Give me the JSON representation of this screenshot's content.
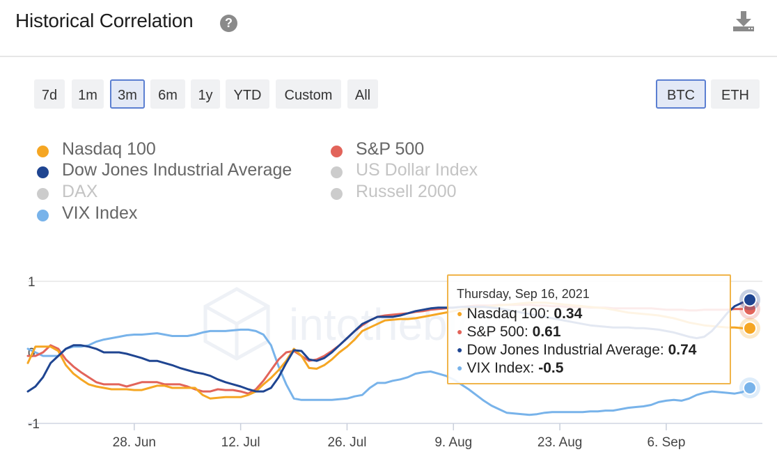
{
  "header": {
    "title": "Historical Correlation",
    "help_icon": "?"
  },
  "ranges": [
    {
      "label": "7d",
      "active": false
    },
    {
      "label": "1m",
      "active": false
    },
    {
      "label": "3m",
      "active": true
    },
    {
      "label": "6m",
      "active": false
    },
    {
      "label": "1y",
      "active": false
    },
    {
      "label": "YTD",
      "active": false
    },
    {
      "label": "Custom",
      "active": false
    },
    {
      "label": "All",
      "active": false
    }
  ],
  "assets": [
    {
      "label": "BTC",
      "active": true
    },
    {
      "label": "ETH",
      "active": false
    }
  ],
  "legend": [
    {
      "label": "Nasdaq 100",
      "color": "#f5a623",
      "enabled": true
    },
    {
      "label": "S&P 500",
      "color": "#e2645a",
      "enabled": true
    },
    {
      "label": "Dow Jones Industrial Average",
      "color": "#1f4591",
      "enabled": true
    },
    {
      "label": "US Dollar Index",
      "color": "#cccccc",
      "enabled": false
    },
    {
      "label": "DAX",
      "color": "#cccccc",
      "enabled": false
    },
    {
      "label": "Russell 2000",
      "color": "#cccccc",
      "enabled": false
    },
    {
      "label": "VIX Index",
      "color": "#78b3ea",
      "enabled": true
    }
  ],
  "tooltip": {
    "date": "Thursday, Sep 16, 2021",
    "rows": [
      {
        "label": "Nasdaq 100",
        "value": "0.34",
        "color": "#f5a623"
      },
      {
        "label": "S&P 500",
        "value": "0.61",
        "color": "#e2645a"
      },
      {
        "label": "Dow Jones Industrial Average",
        "value": "0.74",
        "color": "#1f4591"
      },
      {
        "label": "VIX Index",
        "value": "-0.5",
        "color": "#78b3ea"
      }
    ]
  },
  "chart_data": {
    "type": "line",
    "title": "Historical Correlation",
    "xlabel": "",
    "ylabel": "",
    "ylim": [
      -1,
      1
    ],
    "y_ticks": [
      "1",
      "0",
      "-1"
    ],
    "x_ticks": [
      "28. Jun",
      "12. Jul",
      "26. Jul",
      "9. Aug",
      "23. Aug",
      "6. Sep"
    ],
    "watermark": "intotheblock",
    "x_start_day": 0,
    "x_end_day": 95,
    "x_tick_days": [
      14,
      28,
      42,
      56,
      70,
      84
    ],
    "series": [
      {
        "name": "Nasdaq 100",
        "color": "#f5a623",
        "x": [
          0,
          1,
          2,
          3,
          4,
          5,
          6,
          7,
          8,
          9,
          10,
          11,
          12,
          13,
          14,
          15,
          16,
          17,
          18,
          19,
          20,
          21,
          22,
          23,
          24,
          25,
          26,
          27,
          28,
          29,
          30,
          31,
          32,
          33,
          34,
          35,
          36,
          37,
          38,
          39,
          40,
          41,
          42,
          43,
          44,
          45,
          46,
          47,
          48,
          49,
          50,
          51,
          52,
          53,
          54,
          55,
          56,
          57,
          58,
          59,
          60,
          61,
          62,
          63,
          64,
          65,
          66,
          67,
          68,
          69,
          70,
          71,
          72,
          73,
          74,
          75,
          76,
          77,
          78,
          79,
          80,
          81,
          82,
          83,
          84,
          85,
          86,
          87,
          88,
          89,
          90,
          91,
          92,
          93,
          94,
          95
        ],
        "y": [
          -0.15,
          0.08,
          0.08,
          0.08,
          0.02,
          -0.18,
          -0.3,
          -0.38,
          -0.45,
          -0.48,
          -0.5,
          -0.52,
          -0.52,
          -0.52,
          -0.53,
          -0.53,
          -0.5,
          -0.47,
          -0.47,
          -0.5,
          -0.5,
          -0.5,
          -0.5,
          -0.6,
          -0.65,
          -0.64,
          -0.63,
          -0.63,
          -0.63,
          -0.6,
          -0.55,
          -0.45,
          -0.36,
          -0.25,
          -0.12,
          0.05,
          -0.05,
          -0.22,
          -0.23,
          -0.18,
          -0.1,
          0.0,
          0.08,
          0.18,
          0.3,
          0.35,
          0.4,
          0.45,
          0.46,
          0.47,
          0.47,
          0.48,
          0.5,
          0.52,
          0.54,
          0.56,
          0.58,
          0.6,
          0.62,
          0.63,
          0.64,
          0.65,
          0.66,
          0.67,
          0.68,
          0.69,
          0.7,
          0.7,
          0.7,
          0.69,
          0.68,
          0.67,
          0.66,
          0.65,
          0.64,
          0.63,
          0.62,
          0.6,
          0.58,
          0.56,
          0.55,
          0.54,
          0.53,
          0.52,
          0.5,
          0.48,
          0.45,
          0.42,
          0.4,
          0.38,
          0.37,
          0.36,
          0.35,
          0.35,
          0.34,
          0.34
        ]
      },
      {
        "name": "S&P 500",
        "color": "#e2645a",
        "x": [
          0,
          1,
          2,
          3,
          4,
          5,
          6,
          7,
          8,
          9,
          10,
          11,
          12,
          13,
          14,
          15,
          16,
          17,
          18,
          19,
          20,
          21,
          22,
          23,
          24,
          25,
          26,
          27,
          28,
          29,
          30,
          31,
          32,
          33,
          34,
          35,
          36,
          37,
          38,
          39,
          40,
          41,
          42,
          43,
          44,
          45,
          46,
          47,
          48,
          49,
          50,
          51,
          52,
          53,
          54,
          55,
          56,
          57,
          58,
          59,
          60,
          61,
          62,
          63,
          64,
          65,
          66,
          67,
          68,
          69,
          70,
          71,
          72,
          73,
          74,
          75,
          76,
          77,
          78,
          79,
          80,
          81,
          82,
          83,
          84,
          85,
          86,
          87,
          88,
          89,
          90,
          91,
          92,
          93,
          94,
          95
        ],
        "y": [
          -0.05,
          -0.05,
          0.0,
          0.1,
          0.05,
          -0.1,
          -0.2,
          -0.28,
          -0.35,
          -0.42,
          -0.45,
          -0.45,
          -0.45,
          -0.48,
          -0.45,
          -0.42,
          -0.42,
          -0.42,
          -0.45,
          -0.45,
          -0.45,
          -0.48,
          -0.52,
          -0.55,
          -0.55,
          -0.52,
          -0.53,
          -0.53,
          -0.55,
          -0.58,
          -0.52,
          -0.4,
          -0.25,
          -0.1,
          0.0,
          0.02,
          -0.05,
          -0.12,
          -0.1,
          -0.05,
          0.02,
          0.1,
          0.2,
          0.3,
          0.38,
          0.45,
          0.5,
          0.52,
          0.53,
          0.54,
          0.55,
          0.57,
          0.58,
          0.6,
          0.61,
          0.62,
          0.63,
          0.64,
          0.65,
          0.66,
          0.66,
          0.66,
          0.67,
          0.67,
          0.67,
          0.67,
          0.67,
          0.66,
          0.66,
          0.65,
          0.65,
          0.64,
          0.64,
          0.64,
          0.63,
          0.63,
          0.63,
          0.62,
          0.62,
          0.62,
          0.62,
          0.62,
          0.62,
          0.61,
          0.6,
          0.6,
          0.6,
          0.59,
          0.59,
          0.6,
          0.6,
          0.6,
          0.6,
          0.61,
          0.61,
          0.61
        ]
      },
      {
        "name": "Dow Jones Industrial Average",
        "color": "#1f4591",
        "x": [
          0,
          1,
          2,
          3,
          4,
          5,
          6,
          7,
          8,
          9,
          10,
          11,
          12,
          13,
          14,
          15,
          16,
          17,
          18,
          19,
          20,
          21,
          22,
          23,
          24,
          25,
          26,
          27,
          28,
          29,
          30,
          31,
          32,
          33,
          34,
          35,
          36,
          37,
          38,
          39,
          40,
          41,
          42,
          43,
          44,
          45,
          46,
          47,
          48,
          49,
          50,
          51,
          52,
          53,
          54,
          55,
          56,
          57,
          58,
          59,
          60,
          61,
          62,
          63,
          64,
          65,
          66,
          67,
          68,
          69,
          70,
          71,
          72,
          73,
          74,
          75,
          76,
          77,
          78,
          79,
          80,
          81,
          82,
          83,
          84,
          85,
          86,
          87,
          88,
          89,
          90,
          91,
          92,
          93,
          94,
          95
        ],
        "y": [
          -0.55,
          -0.48,
          -0.35,
          -0.15,
          -0.05,
          0.05,
          0.1,
          0.1,
          0.08,
          0.05,
          0.0,
          0.0,
          0.0,
          -0.02,
          -0.05,
          -0.08,
          -0.12,
          -0.12,
          -0.15,
          -0.18,
          -0.22,
          -0.25,
          -0.28,
          -0.3,
          -0.33,
          -0.38,
          -0.42,
          -0.45,
          -0.48,
          -0.52,
          -0.55,
          -0.55,
          -0.5,
          -0.35,
          -0.15,
          0.03,
          0.02,
          -0.1,
          -0.12,
          -0.08,
          0.0,
          0.1,
          0.2,
          0.3,
          0.4,
          0.45,
          0.5,
          0.5,
          0.5,
          0.52,
          0.55,
          0.58,
          0.6,
          0.62,
          0.63,
          0.63,
          0.63,
          0.64,
          0.64,
          0.64,
          0.64,
          0.63,
          0.62,
          0.6,
          0.58,
          0.56,
          0.54,
          0.52,
          0.5,
          0.48,
          0.46,
          0.44,
          0.42,
          0.4,
          0.38,
          0.37,
          0.36,
          0.35,
          0.35,
          0.35,
          0.34,
          0.34,
          0.33,
          0.32,
          0.3,
          0.28,
          0.25,
          0.22,
          0.2,
          0.22,
          0.3,
          0.42,
          0.55,
          0.65,
          0.7,
          0.74
        ]
      },
      {
        "name": "VIX Index",
        "color": "#78b3ea",
        "x": [
          0,
          1,
          2,
          3,
          4,
          5,
          6,
          7,
          8,
          9,
          10,
          11,
          12,
          13,
          14,
          15,
          16,
          17,
          18,
          19,
          20,
          21,
          22,
          23,
          24,
          25,
          26,
          27,
          28,
          29,
          30,
          31,
          32,
          33,
          34,
          35,
          36,
          37,
          38,
          39,
          40,
          41,
          42,
          43,
          44,
          45,
          46,
          47,
          48,
          49,
          50,
          51,
          52,
          53,
          54,
          55,
          56,
          57,
          58,
          59,
          60,
          61,
          62,
          63,
          64,
          65,
          66,
          67,
          68,
          69,
          70,
          71,
          72,
          73,
          74,
          75,
          76,
          77,
          78,
          79,
          80,
          81,
          82,
          83,
          84,
          85,
          86,
          87,
          88,
          89,
          90,
          91,
          92,
          93,
          94,
          95
        ],
        "y": [
          0.05,
          0.0,
          -0.05,
          -0.05,
          -0.05,
          0.05,
          0.08,
          0.08,
          0.1,
          0.15,
          0.18,
          0.2,
          0.22,
          0.24,
          0.25,
          0.25,
          0.26,
          0.27,
          0.25,
          0.23,
          0.23,
          0.23,
          0.25,
          0.28,
          0.3,
          0.3,
          0.3,
          0.31,
          0.32,
          0.32,
          0.3,
          0.25,
          0.1,
          -0.2,
          -0.45,
          -0.65,
          -0.67,
          -0.67,
          -0.67,
          -0.67,
          -0.67,
          -0.66,
          -0.65,
          -0.62,
          -0.6,
          -0.5,
          -0.43,
          -0.43,
          -0.4,
          -0.38,
          -0.35,
          -0.3,
          -0.28,
          -0.27,
          -0.3,
          -0.33,
          -0.38,
          -0.45,
          -0.52,
          -0.6,
          -0.68,
          -0.75,
          -0.8,
          -0.85,
          -0.86,
          -0.87,
          -0.88,
          -0.87,
          -0.85,
          -0.84,
          -0.84,
          -0.84,
          -0.84,
          -0.84,
          -0.83,
          -0.83,
          -0.82,
          -0.82,
          -0.8,
          -0.78,
          -0.77,
          -0.76,
          -0.74,
          -0.7,
          -0.68,
          -0.67,
          -0.68,
          -0.65,
          -0.6,
          -0.57,
          -0.55,
          -0.56,
          -0.57,
          -0.58,
          -0.56,
          -0.5
        ]
      }
    ]
  }
}
